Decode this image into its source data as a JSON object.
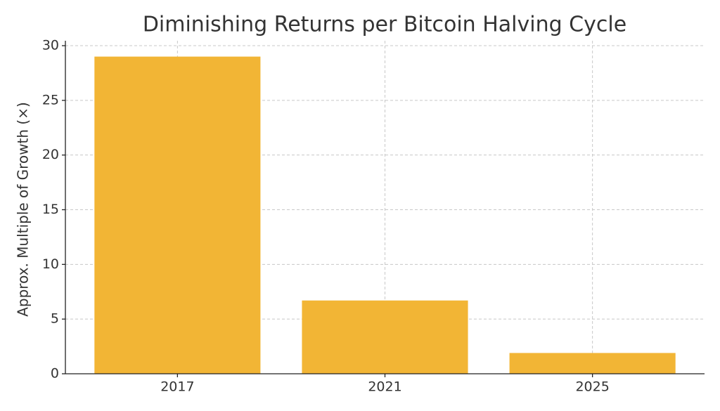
{
  "chart_data": {
    "type": "bar",
    "title": "Diminishing Returns per Bitcoin Halving Cycle",
    "y_label": "Approx. Multiple of Growth (×)",
    "categories": [
      "2017",
      "2021",
      "2025"
    ],
    "values": [
      29,
      6.7,
      1.9
    ],
    "color": "#f2b535",
    "ylim": [
      0,
      30.45
    ],
    "yticks": [
      0,
      5,
      10,
      15,
      20,
      25,
      30
    ],
    "grid": true
  }
}
